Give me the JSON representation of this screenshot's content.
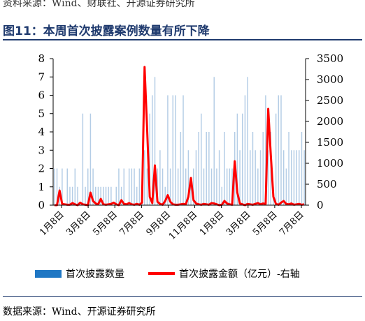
{
  "header": {
    "top_source": "资料来源：Wind、财联社、开源证券研究所",
    "title": "图11：本周首次披露案例数量有所下降"
  },
  "footer": {
    "source": "数据来源：Wind、开源证券研究所"
  },
  "colors": {
    "bars": "#b4cde6",
    "line": "#ff0000",
    "legend_bar": "#1f77c4",
    "title": "#1f3a6e"
  },
  "chart_data": {
    "type": "bar",
    "title": "",
    "xlabel": "",
    "ylabel": "",
    "ylim": [
      0,
      8
    ],
    "y2lim": [
      0,
      3500
    ],
    "y_ticks": [
      "0",
      "1",
      "2",
      "3",
      "4",
      "5",
      "6",
      "7",
      "8"
    ],
    "y2_ticks": [
      "0",
      "500",
      "1000",
      "1500",
      "2000",
      "2500",
      "3000",
      "3500"
    ],
    "x_tick_labels": [
      "1月8日",
      "3月8日",
      "5月8日",
      "7月8日",
      "9月8日",
      "11月8日",
      "1月8日",
      "3月8日",
      "5月8日",
      "7月8日"
    ],
    "legend_position": "bottom",
    "series": [
      {
        "name": "首次披露数量",
        "type": "bar",
        "axis": "left",
        "values": [
          2,
          2,
          1,
          2,
          0,
          2,
          1,
          1,
          2,
          1,
          0,
          5,
          1,
          2,
          5,
          2,
          1,
          1,
          1,
          1,
          1,
          1,
          1,
          0,
          1,
          2,
          1,
          2,
          0,
          2,
          2,
          2,
          1,
          2,
          1,
          3,
          2,
          5,
          6,
          7,
          2,
          3,
          2,
          1,
          6,
          2,
          6,
          6,
          2,
          4,
          6,
          2,
          3,
          1,
          2,
          3,
          4,
          5,
          2,
          4,
          4,
          2,
          7,
          2,
          3,
          1,
          4,
          2,
          2,
          2,
          4,
          5,
          3,
          5,
          6,
          7,
          3,
          4,
          3,
          2,
          3,
          4,
          6,
          3,
          4,
          1,
          5,
          6,
          6,
          3,
          2,
          4,
          3,
          3,
          3,
          3,
          4,
          3
        ]
      },
      {
        "name": "首次披露金额（亿元）-右轴",
        "type": "line",
        "axis": "right",
        "values": [
          0,
          0,
          350,
          30,
          20,
          10,
          10,
          50,
          20,
          0,
          60,
          20,
          10,
          0,
          300,
          100,
          40,
          20,
          150,
          20,
          10,
          20,
          30,
          60,
          20,
          0,
          120,
          30,
          20,
          50,
          20,
          10,
          30,
          10,
          60,
          3300,
          1800,
          200,
          50,
          950,
          80,
          30,
          10,
          100,
          240,
          80,
          20,
          10,
          10,
          20,
          30,
          20,
          200,
          650,
          120,
          40,
          20,
          10,
          30,
          20,
          10,
          50,
          40,
          20,
          0,
          10,
          100,
          40,
          20,
          10,
          1050,
          300,
          40,
          20,
          0,
          30,
          20,
          10,
          30,
          50,
          20,
          40,
          30,
          2300,
          1200,
          200,
          30,
          10,
          60,
          100,
          30,
          20,
          40,
          10,
          20,
          30,
          10,
          20
        ]
      }
    ]
  }
}
